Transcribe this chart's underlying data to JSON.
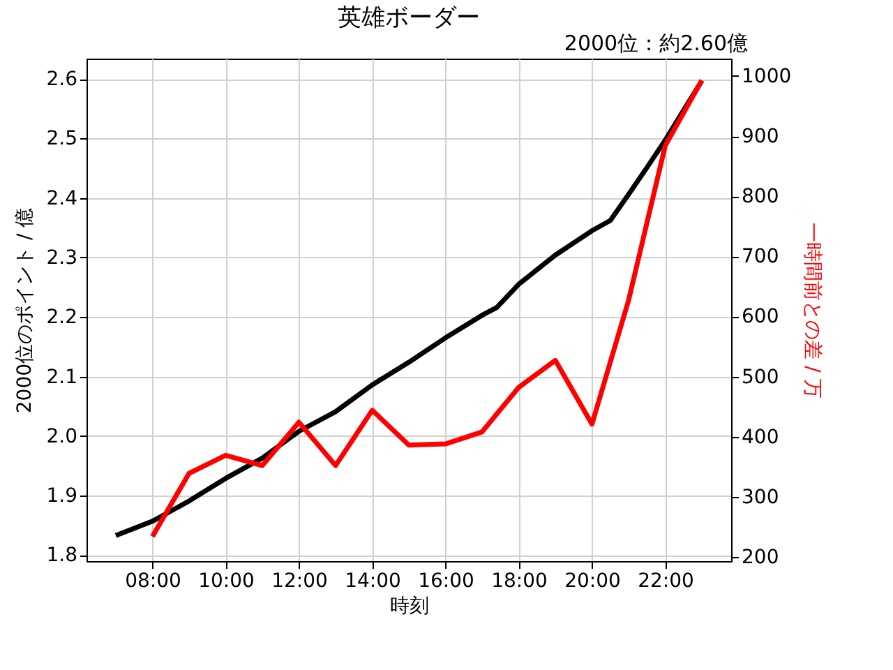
{
  "chart_data": {
    "type": "line",
    "title": "英雄ボーダー",
    "annotations": [
      "2000位：約2.60億"
    ],
    "xlabel": "時刻",
    "ylabel": "2000位のポイント / 億",
    "y2label": "一時間前との差 / 万",
    "xlim": [
      6.2,
      23.8
    ],
    "xticks": [
      {
        "value": 8,
        "label": "08:00"
      },
      {
        "value": 10,
        "label": "10:00"
      },
      {
        "value": 12,
        "label": "12:00"
      },
      {
        "value": 14,
        "label": "14:00"
      },
      {
        "value": 16,
        "label": "16:00"
      },
      {
        "value": 18,
        "label": "18:00"
      },
      {
        "value": 20,
        "label": "20:00"
      },
      {
        "value": 22,
        "label": "22:00"
      }
    ],
    "ylim": [
      1.79,
      2.634
    ],
    "yticks": [
      1.8,
      1.9,
      {
        "value": 2,
        "label": "2.0"
      },
      2.1,
      2.2,
      2.3,
      2.4,
      2.5,
      2.6
    ],
    "y2lim": [
      193,
      1029
    ],
    "y2ticks": [
      200,
      300,
      400,
      500,
      600,
      700,
      800,
      900,
      1000
    ],
    "grid": true,
    "line_style": "solid",
    "series": [
      {
        "color": "#000000",
        "x": [
          7,
          8,
          9,
          10,
          11,
          12,
          13,
          14,
          15,
          16,
          17,
          17.4,
          18,
          19,
          20,
          20.5,
          21,
          21.5,
          22,
          23
        ],
        "values": [
          1.833,
          1.857,
          1.891,
          1.929,
          1.963,
          2.008,
          2.041,
          2.086,
          2.124,
          2.165,
          2.203,
          2.216,
          2.255,
          2.304,
          2.345,
          2.362,
          2.406,
          2.451,
          2.497,
          2.597
        ]
      },
      {
        "color": "#ff0000",
        "axis": "y2",
        "x": [
          8,
          9,
          10,
          11,
          12,
          13,
          14,
          15,
          16,
          17,
          18,
          19,
          20,
          21,
          22,
          23
        ],
        "values": [
          234,
          339,
          369,
          352,
          424,
          352,
          444,
          386,
          388,
          408,
          482,
          527,
          421,
          627,
          884,
          993
        ]
      }
    ]
  }
}
